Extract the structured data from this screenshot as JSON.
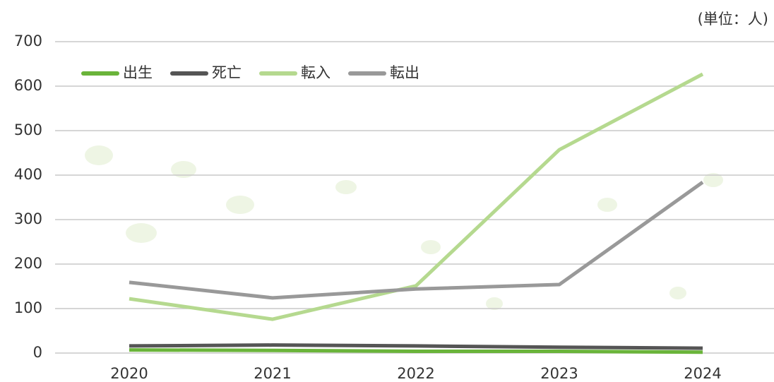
{
  "chart_data": {
    "type": "line",
    "unit_label": "(単位：人)",
    "categories": [
      "2020",
      "2021",
      "2022",
      "2023",
      "2024"
    ],
    "series": [
      {
        "name": "出生",
        "color": "#6ab43a",
        "values": [
          7,
          6,
          4,
          4,
          2
        ]
      },
      {
        "name": "死亡",
        "color": "#555555",
        "values": [
          16,
          18,
          16,
          13,
          11
        ]
      },
      {
        "name": "転入",
        "color": "#b5d98f",
        "values": [
          122,
          76,
          151,
          457,
          627
        ]
      },
      {
        "name": "転出",
        "color": "#999999",
        "values": [
          159,
          124,
          144,
          154,
          384
        ]
      }
    ],
    "ylim": [
      0,
      700
    ],
    "yticks": [
      0,
      100,
      200,
      300,
      400,
      500,
      600,
      700
    ],
    "grid": true,
    "legend": "top-left"
  }
}
